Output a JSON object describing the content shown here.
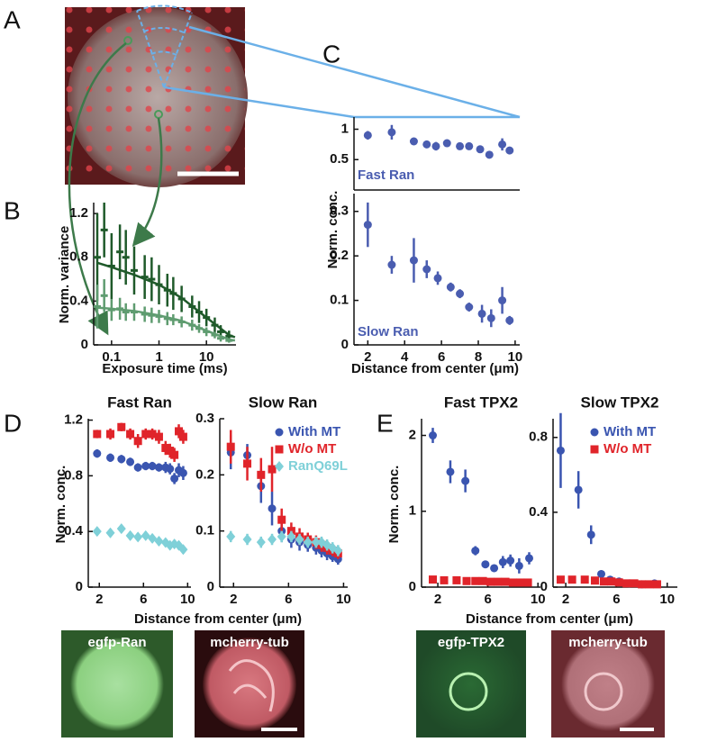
{
  "panel_labels": [
    "A",
    "B",
    "C",
    "D",
    "E"
  ],
  "images": [
    {
      "label": "egfp-Ran"
    },
    {
      "label": "mcherry-tub"
    },
    {
      "label": "egfp-TPX2"
    },
    {
      "label": "mcherry-tub"
    }
  ],
  "chart_data": [
    {
      "type": "errorbar",
      "xlabel": "Exposure time (ms)",
      "ylabel": "Norm. variance",
      "xscale": "log",
      "xlim": [
        0.042,
        42
      ],
      "ylim": [
        0,
        1.3
      ],
      "xticks": [
        0.1,
        1,
        10
      ],
      "yticks": [
        0,
        0.4,
        0.8,
        1.2
      ],
      "series": [
        {
          "color": "#1f5a2a",
          "marker": "dash",
          "x": [
            0.05,
            0.07,
            0.1,
            0.15,
            0.2,
            0.3,
            0.5,
            0.7,
            1,
            1.5,
            2,
            3,
            5,
            7,
            10,
            15,
            20,
            30
          ],
          "values": [
            0.8,
            1.05,
            0.72,
            0.85,
            0.8,
            0.68,
            0.62,
            0.6,
            0.55,
            0.5,
            0.47,
            0.42,
            0.35,
            0.3,
            0.25,
            0.18,
            0.12,
            0.08
          ],
          "errors": [
            0.4,
            0.25,
            0.3,
            0.25,
            0.25,
            0.22,
            0.2,
            0.2,
            0.18,
            0.15,
            0.15,
            0.12,
            0.1,
            0.1,
            0.08,
            0.07,
            0.06,
            0.05
          ]
        },
        {
          "color": "#5f9c70",
          "marker": "dash",
          "x": [
            0.05,
            0.07,
            0.1,
            0.15,
            0.2,
            0.3,
            0.5,
            0.7,
            1,
            1.5,
            2,
            3,
            5,
            7,
            10,
            15,
            20,
            30
          ],
          "values": [
            0.35,
            0.45,
            0.32,
            0.33,
            0.3,
            0.3,
            0.28,
            0.27,
            0.26,
            0.24,
            0.23,
            0.21,
            0.18,
            0.15,
            0.12,
            0.09,
            0.06,
            0.04
          ],
          "errors": [
            0.2,
            0.15,
            0.1,
            0.1,
            0.08,
            0.08,
            0.07,
            0.07,
            0.06,
            0.06,
            0.05,
            0.05,
            0.05,
            0.04,
            0.04,
            0.03,
            0.03,
            0.02
          ]
        },
        {
          "color": "#1f5a2a",
          "style": "line",
          "x": [
            0.05,
            0.1,
            0.3,
            1,
            3,
            10,
            30,
            40
          ],
          "values": [
            0.75,
            0.71,
            0.64,
            0.55,
            0.43,
            0.25,
            0.09,
            0.07
          ]
        },
        {
          "color": "#5f9c70",
          "style": "line",
          "x": [
            0.05,
            0.1,
            0.3,
            1,
            3,
            10,
            30,
            40
          ],
          "values": [
            0.34,
            0.33,
            0.31,
            0.27,
            0.22,
            0.13,
            0.05,
            0.04
          ]
        }
      ]
    },
    {
      "type": "errorbar",
      "annotation": "Fast Ran",
      "xlim": [
        1.25,
        10.25
      ],
      "ylim": [
        0,
        1.2
      ],
      "yticks": [
        0.5,
        1
      ],
      "series": [
        {
          "color": "#4a5db0",
          "marker": "circle",
          "x": [
            2,
            3.3,
            4.5,
            5.2,
            5.7,
            6.3,
            7,
            7.5,
            8.1,
            8.6,
            9.3,
            9.7
          ],
          "values": [
            0.9,
            0.95,
            0.8,
            0.75,
            0.72,
            0.77,
            0.72,
            0.72,
            0.67,
            0.58,
            0.75,
            0.65
          ],
          "errors": [
            0.07,
            0.12,
            0.02,
            0.06,
            0.07,
            0.06,
            0.04,
            0.03,
            0.04,
            0.03,
            0.1,
            0.05
          ]
        }
      ]
    },
    {
      "type": "errorbar",
      "annotation": "Slow Ran",
      "xlabel": "Distance from center (μm)",
      "ylabel": "Norm. conc.",
      "xlim": [
        1.25,
        10.25
      ],
      "ylim": [
        0,
        0.34
      ],
      "xticks": [
        2,
        4,
        6,
        8,
        10
      ],
      "yticks": [
        0,
        0.1,
        0.2,
        0.3
      ],
      "series": [
        {
          "color": "#4a5db0",
          "marker": "circle",
          "x": [
            2,
            3.3,
            4.5,
            5.2,
            5.8,
            6.5,
            7,
            7.5,
            8.2,
            8.7,
            9.3,
            9.7
          ],
          "values": [
            0.27,
            0.18,
            0.19,
            0.17,
            0.15,
            0.13,
            0.115,
            0.085,
            0.07,
            0.06,
            0.1,
            0.055
          ],
          "errors": [
            0.05,
            0.02,
            0.05,
            0.02,
            0.015,
            0.01,
            0.01,
            0.01,
            0.02,
            0.02,
            0.03,
            0.01
          ]
        }
      ]
    },
    {
      "type": "errorbar",
      "title": "Fast Ran",
      "xlabel": "Distance from center (μm)",
      "ylabel": "Norm. conc.",
      "xlim": [
        1,
        10.3
      ],
      "ylim": [
        0,
        1.21
      ],
      "xticks": [
        2,
        6,
        10
      ],
      "yticks": [
        0,
        0.4,
        0.8,
        1.2
      ],
      "series": [
        {
          "color": "#e0242a",
          "marker": "square",
          "x": [
            1.8,
            3,
            4,
            4.8,
            5.5,
            6.2,
            6.8,
            7.4,
            8,
            8.4,
            8.8,
            9.2,
            9.6
          ],
          "values": [
            1.1,
            1.1,
            1.15,
            1.1,
            1.05,
            1.1,
            1.1,
            1.08,
            1.0,
            0.98,
            0.95,
            1.12,
            1.08
          ],
          "errors": [
            0.03,
            0.04,
            0.03,
            0.04,
            0.05,
            0.04,
            0.04,
            0.05,
            0.05,
            0.05,
            0.05,
            0.05,
            0.05
          ]
        },
        {
          "color": "#3a55b0",
          "marker": "circle",
          "x": [
            1.8,
            3,
            4,
            4.8,
            5.5,
            6.2,
            6.8,
            7.4,
            8,
            8.4,
            8.8,
            9.2,
            9.6
          ],
          "values": [
            0.96,
            0.93,
            0.92,
            0.9,
            0.86,
            0.87,
            0.87,
            0.86,
            0.86,
            0.85,
            0.78,
            0.84,
            0.82
          ],
          "errors": [
            0.03,
            0.03,
            0.03,
            0.03,
            0.03,
            0.03,
            0.03,
            0.03,
            0.04,
            0.04,
            0.04,
            0.05,
            0.05
          ]
        },
        {
          "color": "#7fd0d8",
          "marker": "diamond",
          "x": [
            1.8,
            3,
            4,
            4.8,
            5.5,
            6.2,
            6.8,
            7.4,
            8,
            8.4,
            8.8,
            9.2,
            9.6
          ],
          "values": [
            0.4,
            0.39,
            0.42,
            0.37,
            0.36,
            0.37,
            0.35,
            0.33,
            0.32,
            0.3,
            0.31,
            0.3,
            0.27
          ],
          "errors": [
            0.03,
            0.03,
            0.03,
            0.03,
            0.03,
            0.03,
            0.03,
            0.03,
            0.03,
            0.03,
            0.03,
            0.03,
            0.03
          ]
        }
      ]
    },
    {
      "type": "errorbar",
      "title": "Slow Ran",
      "legend": "upper right",
      "xlim": [
        1,
        10.3
      ],
      "ylim": [
        0,
        0.3
      ],
      "xticks": [
        2,
        6,
        10
      ],
      "yticks": [
        0,
        0.1,
        0.2,
        0.3
      ],
      "series": [
        {
          "name": "With MT",
          "color": "#3a55b0",
          "marker": "circle",
          "x": [
            1.8,
            3,
            4,
            4.8,
            5.5,
            6.2,
            6.8,
            7.4,
            8,
            8.4,
            8.8,
            9.2,
            9.6
          ],
          "values": [
            0.24,
            0.235,
            0.18,
            0.14,
            0.1,
            0.085,
            0.08,
            0.075,
            0.07,
            0.065,
            0.06,
            0.055,
            0.05
          ],
          "errors": [
            0.03,
            0.02,
            0.03,
            0.03,
            0.02,
            0.015,
            0.015,
            0.012,
            0.012,
            0.012,
            0.012,
            0.01,
            0.01
          ]
        },
        {
          "name": "W/o MT",
          "color": "#e0242a",
          "marker": "square",
          "x": [
            1.8,
            3,
            4,
            4.8,
            5.5,
            6.2,
            6.8,
            7.4,
            8,
            8.4,
            8.8,
            9.2,
            9.6
          ],
          "values": [
            0.25,
            0.22,
            0.2,
            0.21,
            0.12,
            0.1,
            0.09,
            0.085,
            0.08,
            0.075,
            0.07,
            0.065,
            0.06
          ],
          "errors": [
            0.03,
            0.03,
            0.03,
            0.04,
            0.02,
            0.015,
            0.015,
            0.012,
            0.012,
            0.012,
            0.012,
            0.01,
            0.01
          ]
        },
        {
          "name": "RanQ69L",
          "color": "#7fd0d8",
          "marker": "diamond",
          "x": [
            1.8,
            3,
            4,
            4.8,
            5.5,
            6.2,
            6.8,
            7.4,
            8,
            8.4,
            8.8,
            9.2,
            9.6
          ],
          "values": [
            0.09,
            0.085,
            0.08,
            0.085,
            0.09,
            0.09,
            0.085,
            0.08,
            0.08,
            0.08,
            0.075,
            0.07,
            0.065
          ],
          "errors": [
            0.01,
            0.01,
            0.01,
            0.01,
            0.01,
            0.01,
            0.01,
            0.01,
            0.01,
            0.01,
            0.01,
            0.01,
            0.01
          ]
        }
      ]
    },
    {
      "type": "errorbar",
      "title": "Fast TPX2",
      "xlabel": "Distance from center (μm)",
      "ylabel": "Norm. conc.",
      "xlim": [
        0.7,
        10.2
      ],
      "ylim": [
        0,
        2.22
      ],
      "xticks": [
        2,
        6,
        10
      ],
      "yticks": [
        0,
        1,
        2
      ],
      "series": [
        {
          "color": "#3a55b0",
          "marker": "circle",
          "x": [
            1.6,
            3,
            4.2,
            5,
            5.8,
            6.5,
            7.2,
            7.8,
            8.5,
            9.3
          ],
          "values": [
            2.0,
            1.52,
            1.4,
            0.48,
            0.3,
            0.25,
            0.33,
            0.35,
            0.28,
            0.38
          ],
          "errors": [
            0.1,
            0.15,
            0.15,
            0.06,
            0.05,
            0.04,
            0.08,
            0.08,
            0.1,
            0.08
          ]
        },
        {
          "color": "#e0242a",
          "marker": "square",
          "x": [
            1.6,
            2.5,
            3.5,
            4.3,
            5,
            5.6,
            6.2,
            6.8,
            7.4,
            8,
            8.6,
            9.2
          ],
          "values": [
            0.1,
            0.09,
            0.09,
            0.08,
            0.08,
            0.08,
            0.07,
            0.07,
            0.07,
            0.06,
            0.06,
            0.06
          ],
          "errors": [
            0.01,
            0.01,
            0.01,
            0.01,
            0.01,
            0.01,
            0.01,
            0.01,
            0.01,
            0.01,
            0.01,
            0.01
          ]
        }
      ]
    },
    {
      "type": "errorbar",
      "title": "Slow TPX2",
      "legend": "upper right",
      "xlim": [
        1,
        10.8
      ],
      "ylim": [
        0,
        0.9
      ],
      "xticks": [
        2,
        6,
        10
      ],
      "yticks": [
        0,
        0.4,
        0.8
      ],
      "series": [
        {
          "name": "With MT",
          "color": "#3a55b0",
          "marker": "circle",
          "x": [
            1.6,
            3,
            4,
            4.8,
            5.5,
            6.2,
            7,
            8,
            9
          ],
          "values": [
            0.73,
            0.52,
            0.28,
            0.07,
            0.04,
            0.03,
            0.02,
            0.015,
            0.02
          ],
          "errors": [
            0.2,
            0.1,
            0.05,
            0.02,
            0.01,
            0.01,
            0.01,
            0.01,
            0.01
          ]
        },
        {
          "name": "W/o MT",
          "color": "#e0242a",
          "marker": "square",
          "x": [
            1.6,
            2.5,
            3.5,
            4.3,
            5,
            5.6,
            6.2,
            6.8,
            7.4,
            8,
            8.6,
            9.2
          ],
          "values": [
            0.04,
            0.04,
            0.04,
            0.035,
            0.03,
            0.03,
            0.025,
            0.02,
            0.02,
            0.015,
            0.015,
            0.015
          ],
          "errors": [
            0.005,
            0.005,
            0.005,
            0.005,
            0.005,
            0.005,
            0.005,
            0.005,
            0.005,
            0.005,
            0.005,
            0.005
          ]
        }
      ]
    }
  ]
}
